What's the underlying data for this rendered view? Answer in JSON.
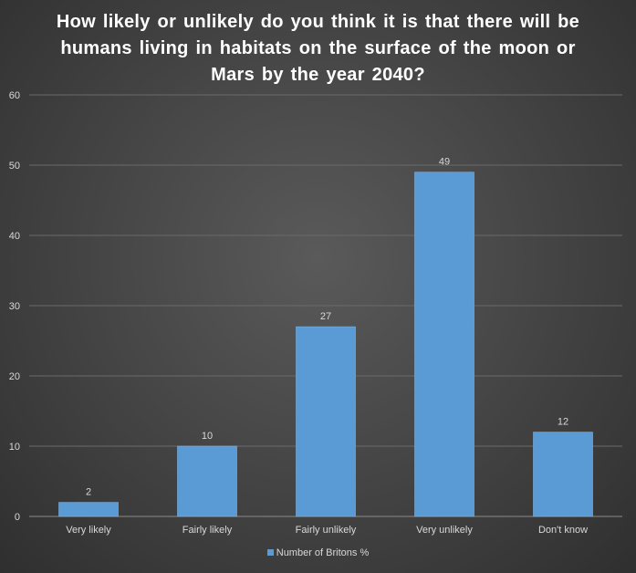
{
  "chart_data": {
    "type": "bar",
    "title": "How likely or unlikely do you think it is that there will be humans living in habitats on the surface of the moon or Mars by the year 2040?",
    "categories": [
      "Very likely",
      "Fairly likely",
      "Fairly unlikely",
      "Very unlikely",
      "Don't know"
    ],
    "series": [
      {
        "name": "Number of Britons %",
        "values": [
          2,
          10,
          27,
          49,
          12
        ]
      }
    ],
    "yticks": [
      "0",
      "10",
      "20",
      "30",
      "40",
      "50",
      "60"
    ],
    "ylim": [
      0,
      60
    ],
    "grid": true,
    "legend": "bottom",
    "colors": {
      "bar": "#5b9bd5",
      "text": "#d9d9d9",
      "grid": "#6a6a6a"
    }
  }
}
